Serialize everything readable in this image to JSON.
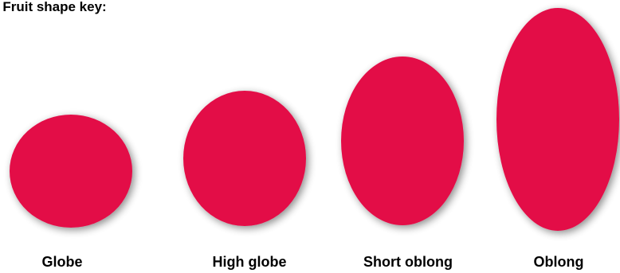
{
  "heading": "* Fruit shape key:",
  "fruit_color": "#E30B47",
  "shadow_color": "#7a7a7a",
  "shapes": [
    {
      "label": "Globe"
    },
    {
      "label": "High globe"
    },
    {
      "label": "Short oblong"
    },
    {
      "label": "Oblong"
    }
  ]
}
